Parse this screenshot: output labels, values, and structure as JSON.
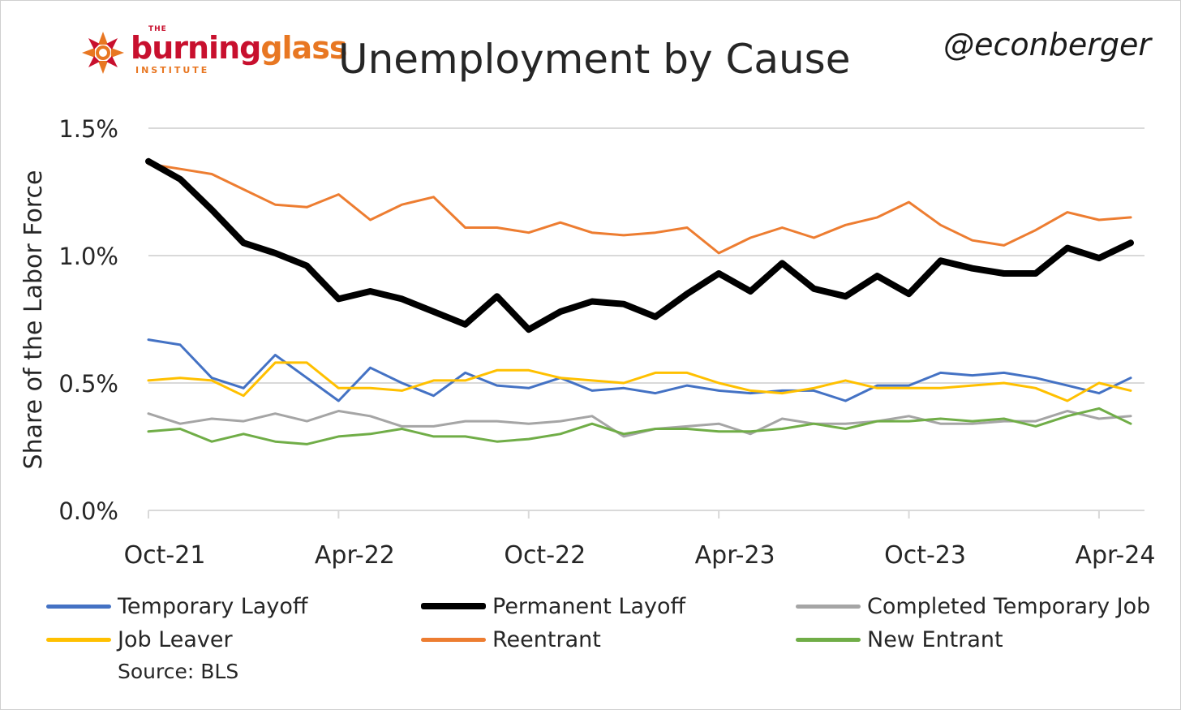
{
  "header": {
    "logo_the": "THE",
    "logo_word1": "burning",
    "logo_word2": "glass",
    "logo_institute": "INSTITUTE",
    "title": "Unemployment by Cause",
    "handle": "@econberger"
  },
  "source": "Source: BLS",
  "chart_data": {
    "type": "line",
    "ylabel": "Share of the Labor Force",
    "ylim": [
      0,
      1.5
    ],
    "yticks": [
      0,
      0.5,
      1.0,
      1.5
    ],
    "ytick_labels": [
      "0.0%",
      "0.5%",
      "1.0%",
      "1.5%"
    ],
    "x_start": "Oct-21",
    "x_end": "Apr-24",
    "xtick_labels": [
      "Oct-21",
      "Apr-22",
      "Oct-22",
      "Apr-23",
      "Oct-23",
      "Apr-24"
    ],
    "xtick_months": [
      "Oct-21",
      "Apr-22",
      "Oct-22",
      "Apr-23",
      "Oct-23",
      "Apr-24"
    ],
    "grid": true,
    "legend_position": "bottom",
    "series": [
      {
        "name": "Temporary Layoff",
        "color": "#4472c4",
        "width": 3,
        "values": [
          0.67,
          0.65,
          0.52,
          0.48,
          0.61,
          0.52,
          0.43,
          0.56,
          0.5,
          0.45,
          0.54,
          0.49,
          0.48,
          0.52,
          0.47,
          0.48,
          0.46,
          0.49,
          0.47,
          0.46,
          0.47,
          0.47,
          0.43,
          0.49,
          0.49,
          0.54,
          0.53,
          0.54,
          0.52,
          0.49,
          0.46,
          0.52
        ]
      },
      {
        "name": "Permanent Layoff",
        "color": "#000000",
        "width": 8,
        "values": [
          1.37,
          1.3,
          1.18,
          1.05,
          1.01,
          0.96,
          0.83,
          0.86,
          0.83,
          0.78,
          0.73,
          0.84,
          0.71,
          0.78,
          0.82,
          0.81,
          0.76,
          0.85,
          0.93,
          0.86,
          0.97,
          0.87,
          0.84,
          0.92,
          0.85,
          0.98,
          0.95,
          0.93,
          0.93,
          1.03,
          0.99,
          1.05
        ]
      },
      {
        "name": "Completed Temporary Job",
        "color": "#a5a5a5",
        "width": 3,
        "values": [
          0.38,
          0.34,
          0.36,
          0.35,
          0.38,
          0.35,
          0.39,
          0.37,
          0.33,
          0.33,
          0.35,
          0.35,
          0.34,
          0.35,
          0.37,
          0.29,
          0.32,
          0.33,
          0.34,
          0.3,
          0.36,
          0.34,
          0.34,
          0.35,
          0.37,
          0.34,
          0.34,
          0.35,
          0.35,
          0.39,
          0.36,
          0.37
        ]
      },
      {
        "name": "Job Leaver",
        "color": "#ffc000",
        "width": 3,
        "values": [
          0.51,
          0.52,
          0.51,
          0.45,
          0.58,
          0.58,
          0.48,
          0.48,
          0.47,
          0.51,
          0.51,
          0.55,
          0.55,
          0.52,
          0.51,
          0.5,
          0.54,
          0.54,
          0.5,
          0.47,
          0.46,
          0.48,
          0.51,
          0.48,
          0.48,
          0.48,
          0.49,
          0.5,
          0.48,
          0.43,
          0.5,
          0.47
        ]
      },
      {
        "name": "Reentrant",
        "color": "#ed7d31",
        "width": 3,
        "values": [
          1.36,
          1.34,
          1.32,
          1.26,
          1.2,
          1.19,
          1.24,
          1.14,
          1.2,
          1.23,
          1.11,
          1.11,
          1.09,
          1.13,
          1.09,
          1.08,
          1.09,
          1.11,
          1.01,
          1.07,
          1.11,
          1.07,
          1.12,
          1.15,
          1.21,
          1.12,
          1.06,
          1.04,
          1.1,
          1.17,
          1.14,
          1.15
        ]
      },
      {
        "name": "New Entrant",
        "color": "#70ad47",
        "width": 3,
        "values": [
          0.31,
          0.32,
          0.27,
          0.3,
          0.27,
          0.26,
          0.29,
          0.3,
          0.32,
          0.29,
          0.29,
          0.27,
          0.28,
          0.3,
          0.34,
          0.3,
          0.32,
          0.32,
          0.31,
          0.31,
          0.32,
          0.34,
          0.32,
          0.35,
          0.35,
          0.36,
          0.35,
          0.36,
          0.33,
          0.37,
          0.4,
          0.34
        ]
      }
    ]
  }
}
